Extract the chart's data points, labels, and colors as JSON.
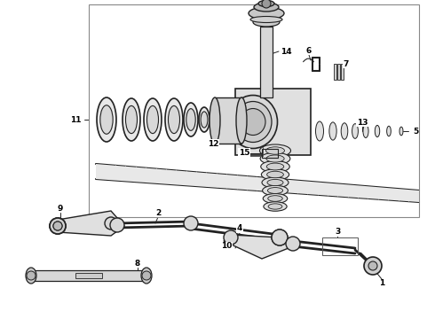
{
  "bg_color": "#ffffff",
  "line_color": "#222222",
  "fig_width": 4.9,
  "fig_height": 3.6,
  "dpi": 100
}
